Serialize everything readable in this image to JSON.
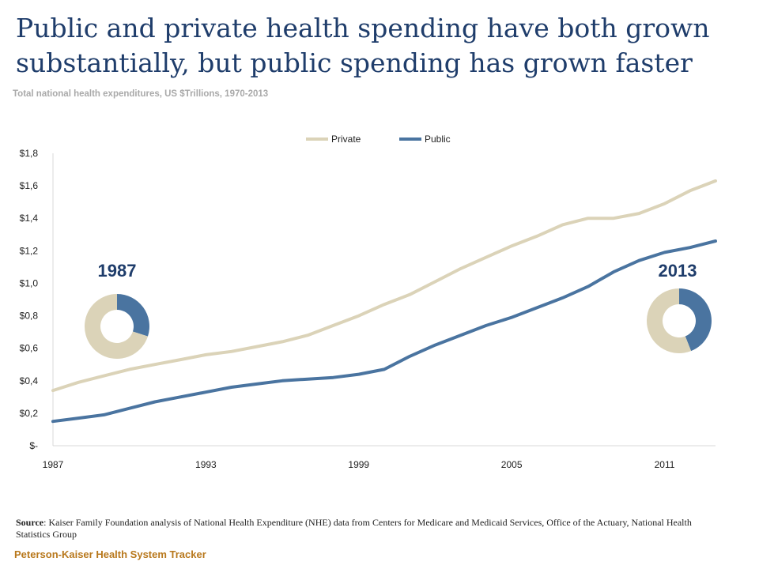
{
  "title": "Public and private health spending have both grown substantially, but public spending has grown faster",
  "subtitle": "Total national health expenditures, US $Trillions, 1970-2013",
  "source_label": "Source",
  "source_text": ": Kaiser Family Foundation analysis of National Health Expenditure (NHE) data from Centers for Medicare and Medicaid Services, Office of the Actuary, National Health Statistics Group",
  "footer": "Peterson-Kaiser Health System Tracker",
  "colors": {
    "private": "#dbd3b8",
    "public": "#4a74a0",
    "year_label": "#1f3d6b"
  },
  "chart_data": {
    "type": "line",
    "ylim": [
      0,
      1.8
    ],
    "y_ticks": [
      0,
      0.2,
      0.4,
      0.6,
      0.8,
      1.0,
      1.2,
      1.4,
      1.6,
      1.8
    ],
    "y_tick_labels": [
      "$-",
      "$0,2",
      "$0,4",
      "$0,6",
      "$0,8",
      "$1,0",
      "$1,2",
      "$1,4",
      "$1,6",
      "$1,8"
    ],
    "x_ticks": [
      1987,
      1993,
      1999,
      2005,
      2011
    ],
    "x_tick_labels": [
      "1987",
      "1993",
      "1999",
      "2005",
      "2011"
    ],
    "legend": "top-center",
    "grid": false,
    "x": [
      1987,
      1988,
      1989,
      1990,
      1991,
      1992,
      1993,
      1994,
      1995,
      1996,
      1997,
      1998,
      1999,
      2000,
      2001,
      2002,
      2003,
      2004,
      2005,
      2006,
      2007,
      2008,
      2009,
      2010,
      2011,
      2012,
      2013
    ],
    "series": [
      {
        "name": "Private",
        "color": "#dbd3b8",
        "values": [
          0.34,
          0.39,
          0.43,
          0.47,
          0.5,
          0.53,
          0.56,
          0.58,
          0.61,
          0.64,
          0.68,
          0.74,
          0.8,
          0.87,
          0.93,
          1.01,
          1.09,
          1.16,
          1.23,
          1.29,
          1.36,
          1.4,
          1.4,
          1.43,
          1.49,
          1.57,
          1.63
        ]
      },
      {
        "name": "Public",
        "color": "#4a74a0",
        "values": [
          0.15,
          0.17,
          0.19,
          0.23,
          0.27,
          0.3,
          0.33,
          0.36,
          0.38,
          0.4,
          0.41,
          0.42,
          0.44,
          0.47,
          0.55,
          0.62,
          0.68,
          0.74,
          0.79,
          0.85,
          0.91,
          0.98,
          1.07,
          1.14,
          1.19,
          1.22,
          1.26
        ]
      }
    ],
    "donuts": [
      {
        "year": "1987",
        "public_share": 0.3,
        "private_share": 0.7
      },
      {
        "year": "2013",
        "public_share": 0.44,
        "private_share": 0.56
      }
    ]
  }
}
